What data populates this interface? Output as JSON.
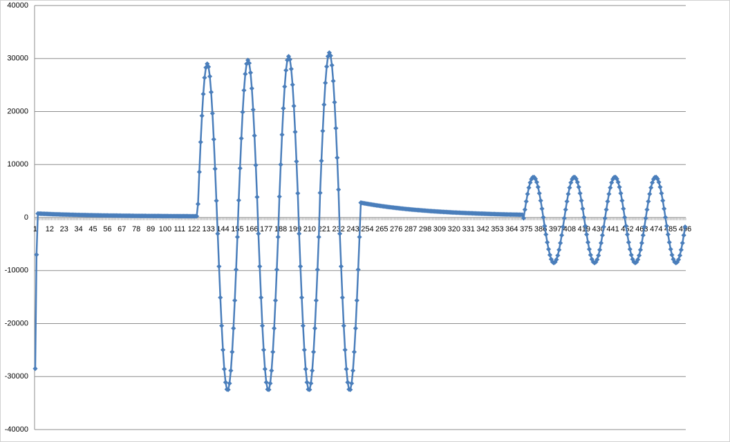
{
  "chart_data": {
    "type": "line",
    "color": "#4a7ebb",
    "grid": true,
    "marker": "diamond",
    "ylim": [
      -40000,
      40000
    ],
    "yticks": [
      -40000,
      -30000,
      -20000,
      -10000,
      0,
      10000,
      20000,
      30000,
      40000
    ],
    "categories": [
      1,
      null,
      null,
      null,
      null,
      null,
      null,
      null,
      null,
      null,
      null,
      12,
      null,
      null,
      null,
      null,
      null,
      null,
      null,
      null,
      null,
      null,
      23,
      null,
      null,
      null,
      null,
      null,
      null,
      null,
      null,
      null,
      null,
      34,
      null,
      null,
      null,
      null,
      null,
      null,
      null,
      null,
      null,
      null,
      45,
      null,
      null,
      null,
      null,
      null,
      null,
      null,
      null,
      null,
      null,
      56,
      null,
      null,
      null,
      null,
      null,
      null,
      null,
      null,
      null,
      null,
      67,
      null,
      null,
      null,
      null,
      null,
      null,
      null,
      null,
      null,
      null,
      78,
      null,
      null,
      null,
      null,
      null,
      null,
      null,
      null,
      null,
      null,
      89,
      null,
      null,
      null,
      null,
      null,
      null,
      null,
      null,
      null,
      null,
      100,
      null,
      null,
      null,
      null,
      null,
      null,
      null,
      null,
      null,
      null,
      111,
      null,
      null,
      null,
      null,
      null,
      null,
      null,
      null,
      null,
      null,
      122,
      null,
      null,
      null,
      null,
      null,
      null,
      null,
      null,
      null,
      null,
      133,
      null,
      null,
      null,
      null,
      null,
      null,
      null,
      null,
      null,
      null,
      144,
      null,
      null,
      null,
      null,
      null,
      null,
      null,
      null,
      null,
      null,
      155,
      null,
      null,
      null,
      null,
      null,
      null,
      null,
      null,
      null,
      null,
      166,
      null,
      null,
      null,
      null,
      null,
      null,
      null,
      null,
      null,
      null,
      177,
      null,
      null,
      null,
      null,
      null,
      null,
      null,
      null,
      null,
      null,
      188,
      null,
      null,
      null,
      null,
      null,
      null,
      null,
      null,
      null,
      null,
      199,
      null,
      null,
      null,
      null,
      null,
      null,
      null,
      null,
      null,
      null,
      210,
      null,
      null,
      null,
      null,
      null,
      null,
      null,
      null,
      null,
      null,
      221,
      null,
      null,
      null,
      null,
      null,
      null,
      null,
      null,
      null,
      null,
      232,
      null,
      null,
      null,
      null,
      null,
      null,
      null,
      null,
      null,
      null,
      243,
      null,
      null,
      null,
      null,
      null,
      null,
      null,
      null,
      null,
      null,
      254,
      null,
      null,
      null,
      null,
      null,
      null,
      null,
      null,
      null,
      null,
      265,
      null,
      null,
      null,
      null,
      null,
      null,
      null,
      null,
      null,
      null,
      276,
      null,
      null,
      null,
      null,
      null,
      null,
      null,
      null,
      null,
      null,
      287,
      null,
      null,
      null,
      null,
      null,
      null,
      null,
      null,
      null,
      null,
      298,
      null,
      null,
      null,
      null,
      null,
      null,
      null,
      null,
      null,
      null,
      309,
      null,
      null,
      null,
      null,
      null,
      null,
      null,
      null,
      null,
      null,
      320,
      null,
      null,
      null,
      null,
      null,
      null,
      null,
      null,
      null,
      null,
      331,
      null,
      null,
      null,
      null,
      null,
      null,
      null,
      null,
      null,
      null,
      342,
      null,
      null,
      null,
      null,
      null,
      null,
      null,
      null,
      null,
      null,
      353,
      null,
      null,
      null,
      null,
      null,
      null,
      null,
      null,
      null,
      null,
      364,
      null,
      null,
      null,
      null,
      null,
      null,
      null,
      null,
      null,
      null,
      375,
      null,
      null,
      null,
      null,
      null,
      null,
      null,
      null,
      null,
      null,
      386,
      null,
      null,
      null,
      null,
      null,
      null,
      null,
      null,
      null,
      null,
      397,
      null,
      null,
      null,
      null,
      null,
      null,
      null,
      null,
      null,
      null,
      408,
      null,
      null,
      null,
      null,
      null,
      null,
      null,
      null,
      null,
      null,
      419,
      null,
      null,
      null,
      null,
      null,
      null,
      null,
      null,
      null,
      null,
      430,
      null,
      null,
      null,
      null,
      null,
      null,
      null,
      null,
      null,
      null,
      441,
      null,
      null,
      null,
      null,
      null,
      null,
      null,
      null,
      null,
      null,
      452,
      null,
      null,
      null,
      null,
      null,
      null,
      null,
      null,
      null,
      null,
      463,
      null,
      null,
      null,
      null,
      null,
      null,
      null,
      null,
      null,
      null,
      474,
      null,
      null,
      null,
      null,
      null,
      null,
      null,
      null,
      null,
      null,
      485,
      null,
      null,
      null,
      null,
      null,
      null,
      null,
      null,
      null,
      null,
      496
    ],
    "values": [
      -28500,
      -7000,
      750,
      740,
      730,
      720,
      710,
      700,
      690,
      680,
      670,
      660,
      650,
      640,
      630,
      620,
      610,
      610,
      600,
      590,
      580,
      570,
      570,
      560,
      550,
      550,
      540,
      530,
      530,
      520,
      510,
      510,
      500,
      500,
      490,
      480,
      480,
      470,
      470,
      460,
      460,
      450,
      450,
      440,
      440,
      430,
      430,
      420,
      420,
      410,
      410,
      400,
      400,
      400,
      390,
      390,
      380,
      380,
      380,
      370,
      370,
      370,
      370,
      360,
      360,
      360,
      350,
      350,
      350,
      340,
      340,
      340,
      340,
      330,
      330,
      330,
      320,
      320,
      320,
      320,
      310,
      310,
      310,
      310,
      310,
      300,
      300,
      300,
      300,
      300,
      290,
      290,
      290,
      290,
      290,
      290,
      280,
      280,
      280,
      280,
      280,
      280,
      270,
      270,
      270,
      270,
      270,
      270,
      270,
      260,
      260,
      260,
      260,
      260,
      260,
      260,
      260,
      250,
      250,
      250,
      250,
      250,
      250,
      250,
      2550,
      8600,
      14230,
      19200,
      23300,
      26380,
      28300,
      29000,
      28430,
      26630,
      23660,
      19650,
      14760,
      9190,
      3170,
      -3050,
      -9220,
      -15090,
      -20410,
      -24970,
      -28580,
      -31090,
      -32410,
      -32470,
      -31280,
      -28880,
      -25360,
      -20900,
      -15640,
      -9820,
      -3670,
      3250,
      9300,
      14930,
      19900,
      24000,
      27080,
      29000,
      29700,
      29130,
      27330,
      24360,
      20350,
      15460,
      9890,
      3870,
      -3050,
      -9220,
      -15090,
      -20410,
      -24970,
      -28580,
      -31090,
      -32410,
      -32470,
      -31280,
      -28880,
      -25360,
      -20900,
      -15640,
      -9820,
      -3670,
      3950,
      10000,
      15630,
      20600,
      24700,
      27780,
      29700,
      30400,
      29830,
      28030,
      25060,
      21050,
      16160,
      10590,
      4570,
      -3050,
      -9220,
      -15090,
      -20410,
      -24970,
      -28580,
      -31090,
      -32410,
      -32470,
      -31280,
      -28880,
      -25360,
      -20900,
      -15640,
      -9820,
      -3670,
      4650,
      10700,
      16330,
      21300,
      25400,
      28480,
      30400,
      31100,
      30530,
      28730,
      25760,
      21750,
      16860,
      11290,
      5270,
      -3050,
      -9220,
      -15090,
      -20410,
      -24970,
      -28580,
      -31090,
      -32410,
      -32470,
      -31280,
      -28880,
      -25360,
      -20900,
      -15640,
      -9820,
      -3670,
      2800,
      2760,
      2710,
      2670,
      2620,
      2580,
      2540,
      2500,
      2460,
      2420,
      2380,
      2340,
      2300,
      2270,
      2230,
      2190,
      2160,
      2120,
      2090,
      2060,
      2020,
      1990,
      1960,
      1930,
      1900,
      1870,
      1840,
      1810,
      1790,
      1760,
      1730,
      1700,
      1680,
      1650,
      1620,
      1600,
      1580,
      1550,
      1530,
      1500,
      1480,
      1460,
      1440,
      1420,
      1400,
      1380,
      1360,
      1340,
      1320,
      1300,
      1280,
      1260,
      1240,
      1220,
      1210,
      1190,
      1170,
      1160,
      1140,
      1120,
      1110,
      1090,
      1080,
      1060,
      1050,
      1040,
      1020,
      1010,
      990,
      980,
      960,
      950,
      940,
      930,
      920,
      910,
      890,
      880,
      870,
      860,
      850,
      840,
      830,
      820,
      810,
      800,
      790,
      780,
      770,
      760,
      750,
      740,
      730,
      730,
      720,
      710,
      700,
      690,
      680,
      670,
      660,
      660,
      650,
      640,
      630,
      630,
      620,
      610,
      600,
      600,
      590,
      590,
      580,
      580,
      570,
      570,
      560,
      560,
      550,
      550,
      540,
      540,
      530,
      530,
      -120,
      1500,
      3040,
      4440,
      5640,
      6590,
      7250,
      7600,
      7620,
      7300,
      6670,
      5750,
      4570,
      3190,
      1660,
      40,
      -1600,
      -3190,
      -4670,
      -5970,
      -7050,
      -7860,
      -8370,
      -8550,
      -8400,
      -7930,
      -7150,
      -6090,
      -4800,
      -3340,
      -1760,
      -120,
      1500,
      3040,
      4440,
      5640,
      6590,
      7250,
      7600,
      7620,
      7300,
      6670,
      5750,
      4570,
      3190,
      1660,
      40,
      -1600,
      -3190,
      -4670,
      -5970,
      -7050,
      -7860,
      -8370,
      -8550,
      -8400,
      -7930,
      -7150,
      -6090,
      -4800,
      -3340,
      -1760,
      -120,
      1500,
      3040,
      4440,
      5640,
      6590,
      7250,
      7600,
      7620,
      7300,
      6670,
      5750,
      4570,
      3190,
      1660,
      40,
      -1600,
      -3190,
      -4670,
      -5970,
      -7050,
      -7860,
      -8370,
      -8550,
      -8400,
      -7930,
      -7150,
      -6090,
      -4800,
      -3340,
      -1760,
      -120,
      1500,
      3040,
      4440,
      5640,
      6590,
      7250,
      7600,
      7620,
      7300,
      6670,
      5750,
      4570,
      3190,
      1660,
      40,
      -1600,
      -3190,
      -4670,
      -5970,
      -7050,
      -7860,
      -8370,
      -8550,
      -8400,
      -7930,
      -7150,
      -6090,
      -4800,
      -3340,
      -1760
    ]
  }
}
